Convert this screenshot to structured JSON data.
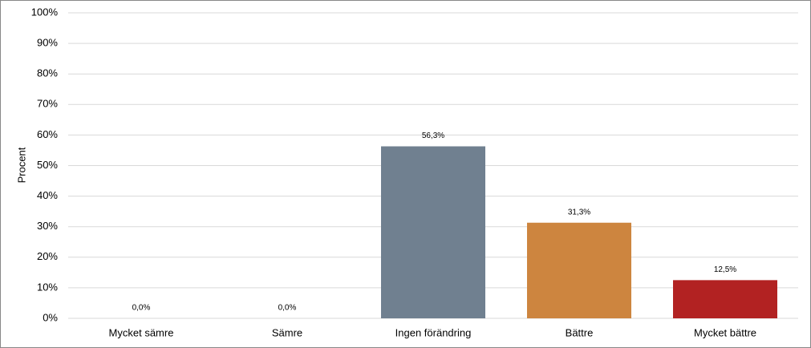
{
  "chart_data": {
    "type": "bar",
    "y_label": "Procent",
    "categories": [
      "Mycket sämre",
      "Sämre",
      "Ingen förändring",
      "Bättre",
      "Mycket bättre"
    ],
    "values": [
      0.0,
      0.0,
      56.3,
      31.3,
      12.5
    ],
    "value_labels": [
      "0,0%",
      "0,0%",
      "56,3%",
      "31,3%",
      "12,5%"
    ],
    "colors": [
      null,
      null,
      "#708090",
      "#cd853f",
      "#b22222"
    ],
    "ylim": [
      0,
      100
    ],
    "yticks": [
      {
        "value": 0,
        "label": "0%"
      },
      {
        "value": 10,
        "label": "10%"
      },
      {
        "value": 20,
        "label": "20%"
      },
      {
        "value": 30,
        "label": "30%"
      },
      {
        "value": 40,
        "label": "40%"
      },
      {
        "value": 50,
        "label": "50%"
      },
      {
        "value": 60,
        "label": "60%"
      },
      {
        "value": 70,
        "label": "70%"
      },
      {
        "value": 80,
        "label": "80%"
      },
      {
        "value": 90,
        "label": "90%"
      },
      {
        "value": 100,
        "label": "100%"
      }
    ],
    "grid": true
  }
}
